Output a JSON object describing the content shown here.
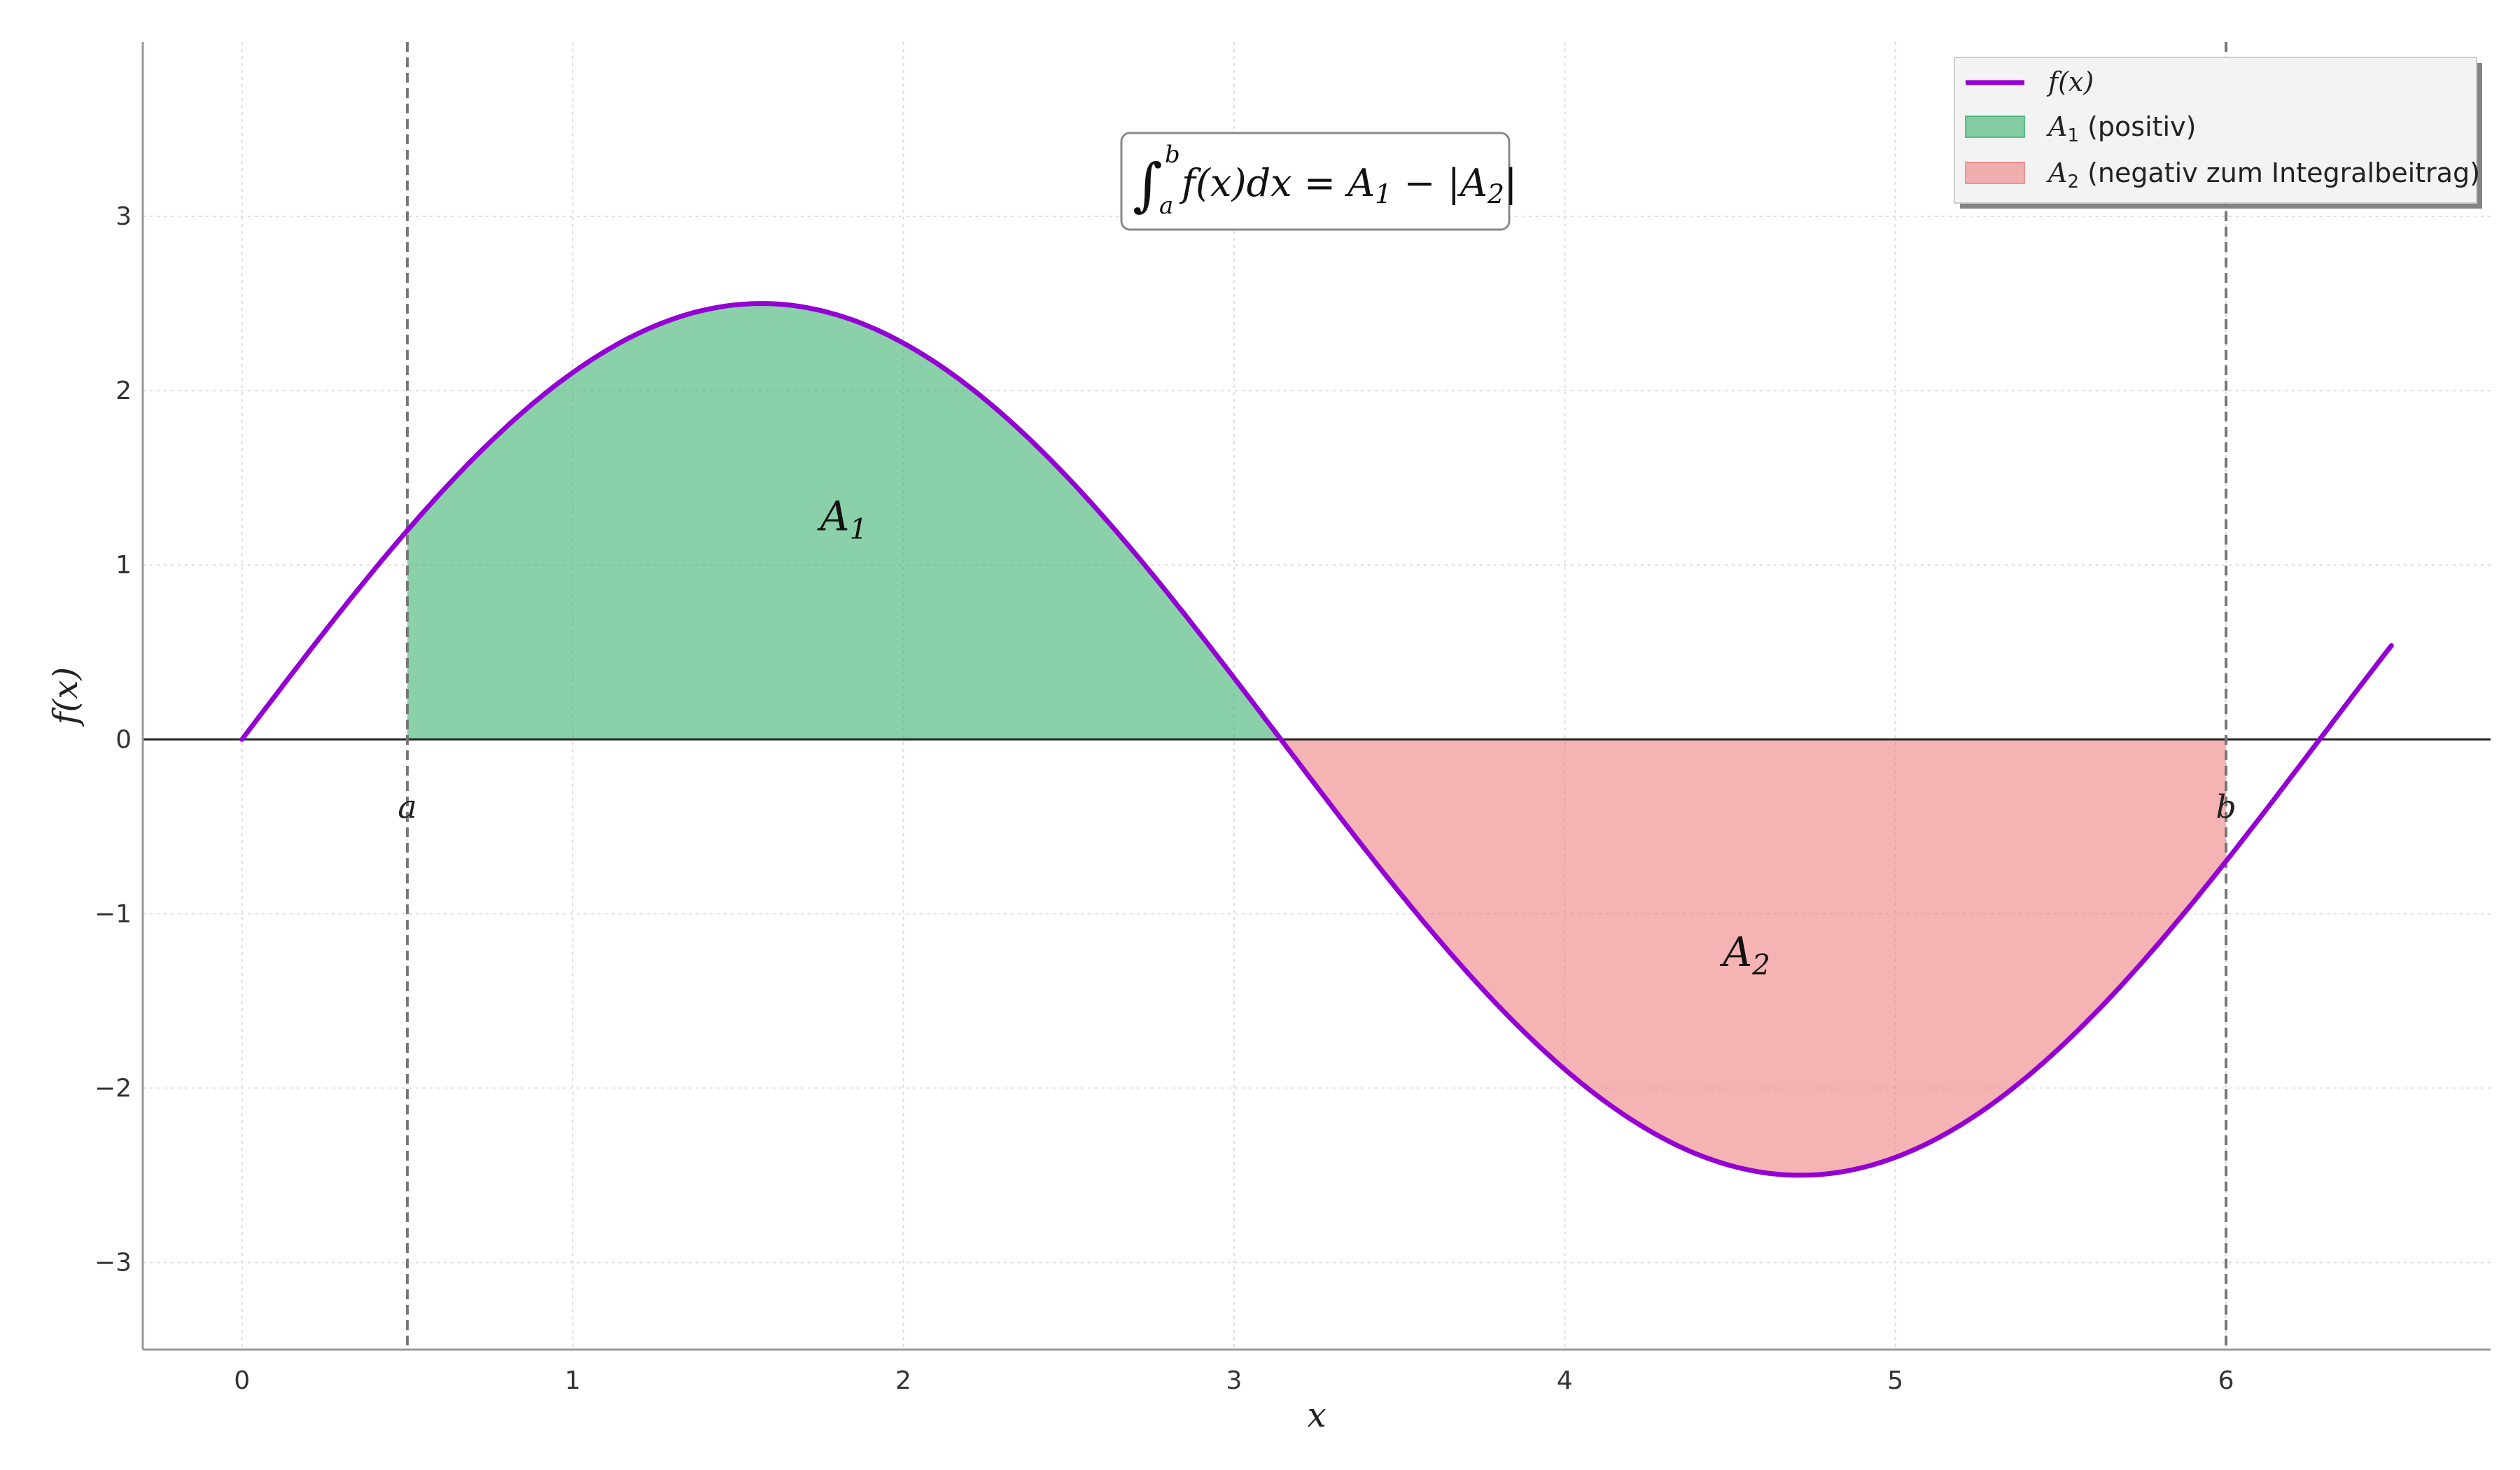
{
  "chart_data": {
    "type": "area",
    "function": "2.5*sin(x)",
    "series": [
      {
        "name": "f(x)",
        "x": [
          0,
          0.25,
          0.5,
          0.75,
          1.0,
          1.25,
          1.5,
          1.5708,
          1.75,
          2.0,
          2.25,
          2.5,
          2.75,
          3.0,
          3.1416,
          3.25,
          3.5,
          3.75,
          4.0,
          4.25,
          4.5,
          4.7124,
          4.75,
          5.0,
          5.25,
          5.5,
          5.75,
          6.0,
          6.25,
          6.2832,
          6.5
        ],
        "y": [
          0,
          0.62,
          1.2,
          1.7,
          2.1,
          2.37,
          2.49,
          2.5,
          2.46,
          2.27,
          1.95,
          1.5,
          0.95,
          0.35,
          0,
          -0.27,
          -0.88,
          -1.43,
          -1.89,
          -2.24,
          -2.44,
          -2.5,
          -2.5,
          -2.4,
          -2.14,
          -1.76,
          -1.27,
          -0.7,
          -0.08,
          0,
          0.54
        ],
        "color": "#9400D3"
      }
    ],
    "integration_bounds": {
      "a": 0.5,
      "b": 6.0,
      "root": 3.1416
    },
    "fills": [
      {
        "name": "A1 (positiv)",
        "from": 0.5,
        "to": 3.1416,
        "color": "#3cb371"
      },
      {
        "name": "A2 (negativ zum Integralbeitrag)",
        "from": 3.1416,
        "to": 6.0,
        "color": "#f08080"
      }
    ],
    "xlabel": "x",
    "ylabel": "f(x)",
    "xlim": [
      -0.3,
      6.8
    ],
    "ylim": [
      -3.5,
      4.0
    ],
    "xticks": [
      0,
      1,
      2,
      3,
      4,
      5,
      6
    ],
    "yticks": [
      -3,
      -2,
      -1,
      0,
      1,
      2,
      3
    ],
    "grid": true,
    "legend_position": "top-right"
  },
  "labels": {
    "xlabel": "x",
    "ylabel": "f(x)",
    "a": "a",
    "b": "b",
    "A1": "A",
    "A1_sub": "1",
    "A2": "A",
    "A2_sub": "2",
    "formula_lower": "a",
    "formula_upper": "b",
    "formula_body": "f(x)dx = A",
    "formula_sub1": "1",
    "formula_mid": " − |A",
    "formula_sub2": "2",
    "formula_end": "|"
  },
  "legend": {
    "line_label": "f(x)",
    "a1_prefix": "A",
    "a1_sub": "1",
    "a1_suffix": " (positiv)",
    "a2_prefix": "A",
    "a2_sub": "2",
    "a2_suffix": " (negativ zum Integralbeitrag)"
  }
}
